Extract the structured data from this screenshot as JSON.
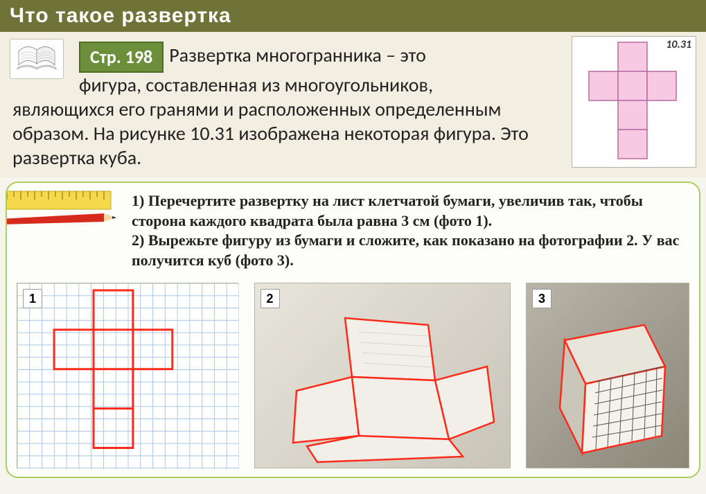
{
  "title": "Что такое развертка",
  "page_badge": "Стр. 198",
  "figure_label": "10.31",
  "definition": {
    "line1_after_badge": "Развертка многогранника – это",
    "line2_indented": "фигура, составленная из многоугольников,",
    "rest": "являющихся его гранями и расположенных определенным образом. На рисунке 10.31 изображена некоторая фигура. Это развертка куба."
  },
  "instructions": {
    "item1": "1) Перечертите развертку на лист клетчатой бумаги, увеличив так, чтобы сторона каждого квадрата была равна 3 см (фото 1).",
    "item2": "2) Вырежьте фигуру из бумаги и сложите, как показано на фотографии 2. У вас получится куб (фото 3)."
  },
  "photos": {
    "n1": "1",
    "n2": "2",
    "n3": "3"
  },
  "colors": {
    "header_bg": "#707338",
    "badge_bg": "#6b8f3a",
    "panel_bg": "#f2efe2",
    "net_fill": "#f7c9e2",
    "net_stroke": "#b56aa0",
    "box_border": "#a9cf5a",
    "grid_line": "#a9c8e8",
    "outline_red": "#ff2a1a",
    "pencil_red": "#d62a1f",
    "ruler_yellow": "#f5d94a"
  },
  "cube_net": {
    "type": "cube-net-cross",
    "cell_size": 42,
    "rows": 4,
    "cols": 3,
    "filled_cells": [
      [
        0,
        1
      ],
      [
        1,
        0
      ],
      [
        1,
        1
      ],
      [
        1,
        2
      ],
      [
        2,
        1
      ],
      [
        3,
        1
      ]
    ]
  },
  "photo1_diagram": {
    "type": "grid-with-outline",
    "grid_cells": 15,
    "outline_cells": [
      [
        1,
        5,
        4,
        4
      ],
      [
        5,
        1,
        4,
        4
      ],
      [
        5,
        5,
        4,
        4
      ],
      [
        5,
        9,
        4,
        4
      ],
      [
        9,
        5,
        4,
        4
      ],
      [
        13,
        5,
        4,
        4
      ]
    ],
    "outline_color": "#ff2a1a",
    "grid_color": "#a9c8e8"
  }
}
